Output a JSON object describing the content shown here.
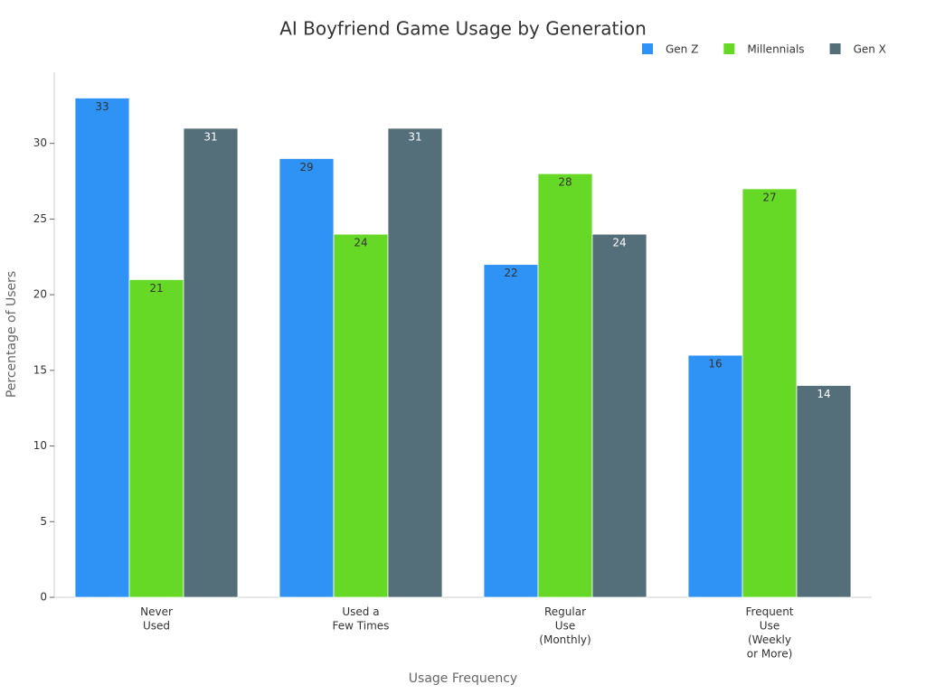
{
  "chart_data": {
    "type": "bar",
    "title": "AI Boyfriend Game Usage by Generation",
    "x_label": "Usage Frequency",
    "y_label": "Percentage of Users",
    "categories": [
      "Never\nUsed",
      "Used a\nFew Times",
      "Regular\nUse\n(Monthly)",
      "Frequent\nUse\n(Weekly\nor More)"
    ],
    "series": [
      {
        "name": "Gen Z",
        "color": "#2f92f5",
        "values": [
          33,
          29,
          22,
          16
        ]
      },
      {
        "name": "Millennials",
        "color": "#66d926",
        "values": [
          21,
          24,
          28,
          27
        ]
      },
      {
        "name": "Gen X",
        "color": "#546e7a",
        "values": [
          31,
          31,
          24,
          14
        ]
      }
    ],
    "ylim": [
      0,
      34.7
    ],
    "yticks": [
      0,
      5,
      10,
      15,
      20,
      25,
      30
    ],
    "legend": "top-right"
  }
}
